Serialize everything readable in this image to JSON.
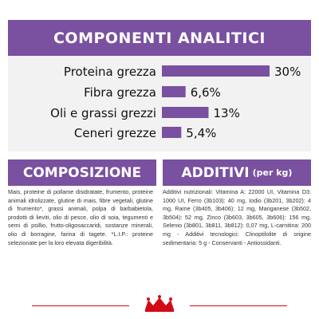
{
  "header": {
    "title": "COMPONENTI ANALITICI"
  },
  "chart_data": {
    "type": "bar",
    "orientation": "horizontal",
    "categories": [
      "Proteina grezza",
      "Fibra grezza",
      "Oli e grassi grezzi",
      "Ceneri grezze"
    ],
    "values": [
      30,
      6.6,
      13,
      5.4
    ],
    "data_labels": [
      "30%",
      "6,6%",
      "13%",
      "5,4%"
    ],
    "bar_color": "#7a50a0"
  },
  "composizione": {
    "title": "COMPOSIZIONE",
    "text": "Mais, proteine di pollame disidratate, frumento, proteine animali idrolizzate, glutine di mais, fibre vegetali, glutine di frumento*, grassi animali, polpa di barbabietola, prodotti di lieviti, olio di pesce, olio di soia, tegumenti e semi di psillio, frutto-oligosaccaridi, sostanze minerali, olio di borragine, farina di tagete. *L.I.P.: proteine selezionate per la loro elevata digeribilità."
  },
  "additivi": {
    "title": "ADDITIVI",
    "unit": "(per kg)",
    "text": "Additivi nutrizionali: Vitamina A: 22000 UI, Vitamina D3: 1000 UI, Ferro (3b103): 40 mg, Iodio (3b201, 3b202): 4 mg, Rame (3b405, 3b406): 12 mg, Manganese (3b502, 3b504): 52 mg, Zinco (3b603, 3b605, 3b606): 156 mg, Selenio (3b801, 3b811, 3b812): 0,07 mg, L-carnitina: 200 mg - Additivi tecnologici: Clinoptilolite di origine sedimentaria: 5 g - Conservanti - Antiossidanti."
  },
  "colors": {
    "brand_purple": "#7a50a0",
    "brand_red": "#d20a14"
  }
}
